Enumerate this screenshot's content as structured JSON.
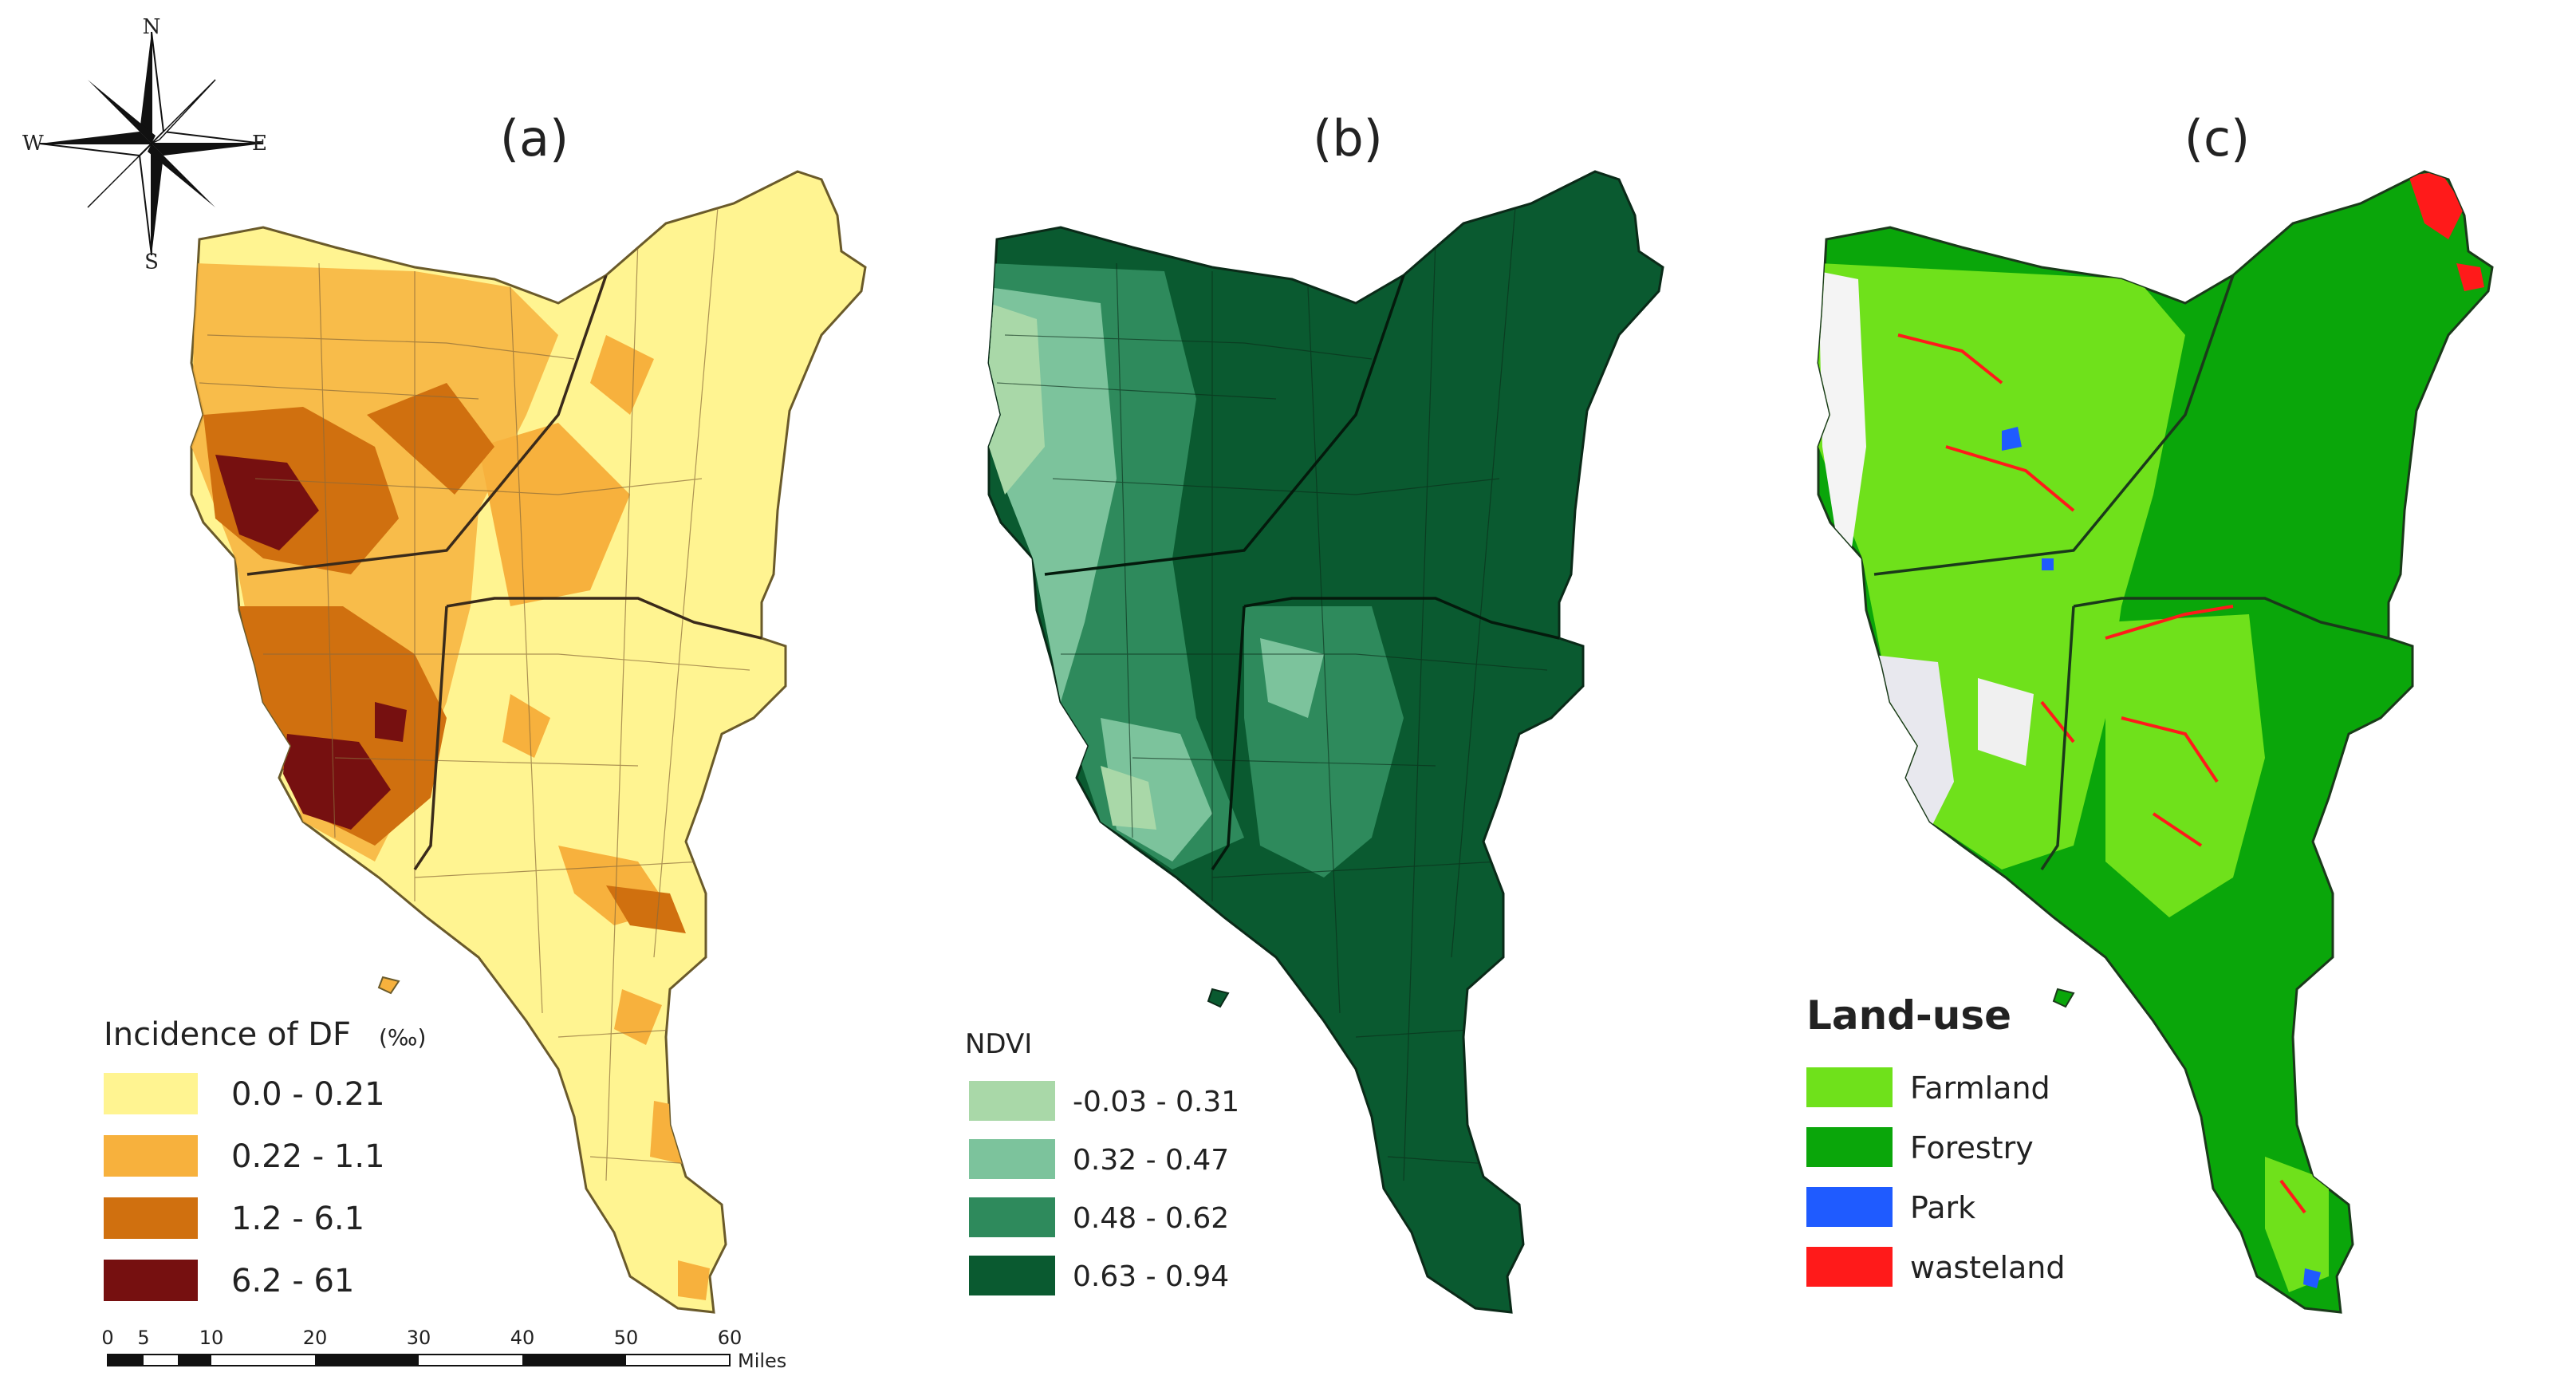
{
  "compass": {
    "north": "N",
    "south": "S",
    "east": "E",
    "west": "W"
  },
  "panels": [
    {
      "label": "(a)",
      "legend_title": "Incidence of DF",
      "legend_unit": "(‰)",
      "legend": [
        {
          "label": "0.0 - 0.21",
          "color": "#fff491"
        },
        {
          "label": "0.22 - 1.1",
          "color": "#f7b13d"
        },
        {
          "label": "1.2 - 6.1",
          "color": "#d0700f"
        },
        {
          "label": "6.2 - 61",
          "color": "#761010"
        }
      ]
    },
    {
      "label": "(b)",
      "legend_title": "NDVI",
      "legend": [
        {
          "label": "-0.03 - 0.31",
          "color": "#a9d8a8"
        },
        {
          "label": "0.32 - 0.47",
          "color": "#7cc39c"
        },
        {
          "label": "0.48 - 0.62",
          "color": "#2e8a5c"
        },
        {
          "label": "0.63 - 0.94",
          "color": "#0a5a30"
        }
      ]
    },
    {
      "label": "(c)",
      "legend_title": "Land-use",
      "legend": [
        {
          "label": "Farmland",
          "color": "#6fe11b"
        },
        {
          "label": "Forestry",
          "color": "#0aa60a"
        },
        {
          "label": "Park",
          "color": "#1f5bff"
        },
        {
          "label": "wasteland",
          "color": "#ff1a1a"
        }
      ]
    }
  ],
  "scale_bar": {
    "ticks": [
      "0",
      "5",
      "10",
      "20",
      "30",
      "40",
      "50",
      "60"
    ],
    "unit": "Miles"
  }
}
